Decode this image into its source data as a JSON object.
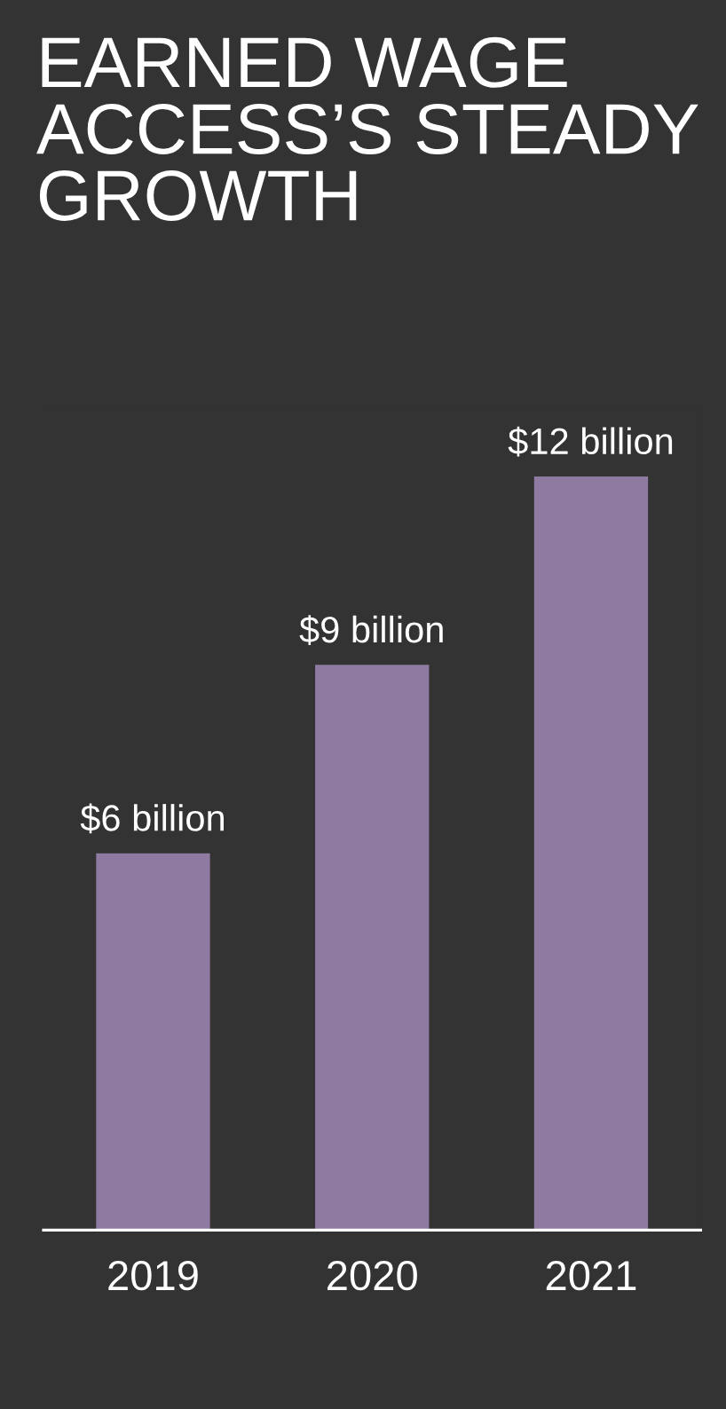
{
  "chart_data": {
    "type": "bar",
    "title": "EARNED WAGE\nACCESS’S STEADY\nGROWTH",
    "categories": [
      "2019",
      "2020",
      "2021"
    ],
    "values": [
      6,
      9,
      12
    ],
    "color": "#8f7aa1",
    "value_labels": [
      "$6 billion",
      "$9 billion",
      "$12 billion"
    ]
  }
}
